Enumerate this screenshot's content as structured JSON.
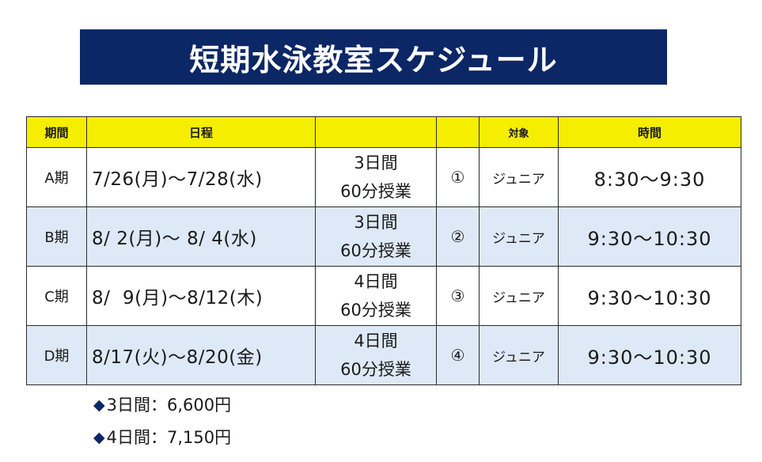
{
  "banner": {
    "title": "短期水泳教室スケジュール"
  },
  "table": {
    "headers": {
      "period": "期間",
      "schedule": "日程",
      "blank1": "",
      "blank2": "",
      "target": "対象",
      "time": "時間"
    },
    "rows": [
      {
        "period": "A期",
        "dates": "7/26(月)〜7/28(水)",
        "duration_days": "3日間",
        "duration_lesson": "60分授業",
        "number": "①",
        "target": "ジュニア",
        "time": "8:30〜9:30"
      },
      {
        "period": "B期",
        "dates": "8/ 2(月)〜 8/ 4(水)",
        "duration_days": "3日間",
        "duration_lesson": "60分授業",
        "number": "②",
        "target": "ジュニア",
        "time": "9:30〜10:30"
      },
      {
        "period": "C期",
        "dates": "8/  9(月)〜8/12(木)",
        "duration_days": "4日間",
        "duration_lesson": "60分授業",
        "number": "③",
        "target": "ジュニア",
        "time": "9:30〜10:30"
      },
      {
        "period": "D期",
        "dates": "8/17(火)〜8/20(金)",
        "duration_days": "4日間",
        "duration_lesson": "60分授業",
        "number": "④",
        "target": "ジュニア",
        "time": "9:30〜10:30"
      }
    ]
  },
  "notes": [
    {
      "bullet": "◆",
      "text": "3日間：6,600円"
    },
    {
      "bullet": "◆",
      "text": "4日間：7,150円"
    }
  ],
  "colors": {
    "banner_bg": "#0c2765",
    "header_bg": "#f5ee00",
    "alt_row_bg": "#dde9f6"
  }
}
